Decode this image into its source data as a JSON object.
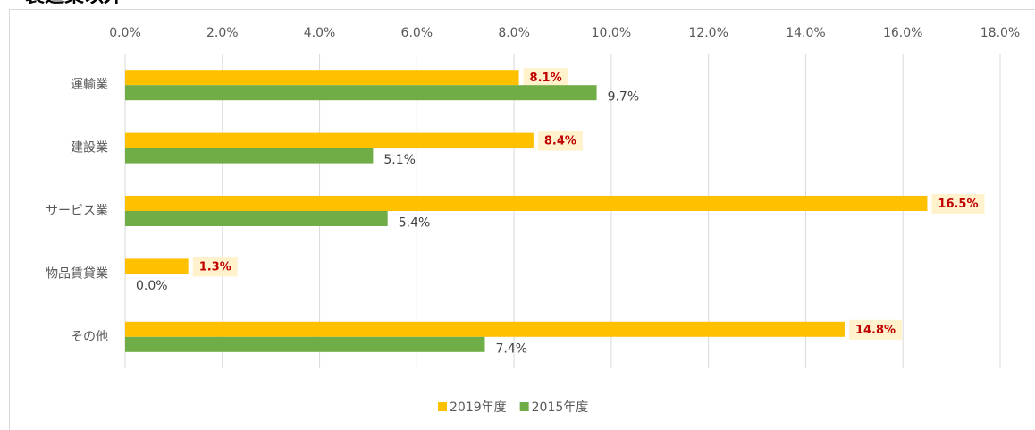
{
  "chart_data": {
    "type": "bar",
    "orientation": "horizontal",
    "title": "製造業以外",
    "categories": [
      "運輸業",
      "建設業",
      "サービス業",
      "物品賃貸業",
      "その他"
    ],
    "series": [
      {
        "name": "2019年度",
        "color": "#FFC000",
        "values": [
          8.1,
          8.4,
          16.5,
          1.3,
          14.8
        ],
        "value_labels": [
          "8.1%",
          "8.4%",
          "16.5%",
          "1.3%",
          "14.8%"
        ]
      },
      {
        "name": "2015年度",
        "color": "#70AD47",
        "values": [
          9.7,
          5.1,
          5.4,
          0.0,
          7.4
        ],
        "value_labels": [
          "9.7%",
          "5.1%",
          "5.4%",
          "0.0%",
          "7.4%"
        ]
      }
    ],
    "xlim": [
      0,
      18
    ],
    "xticks": [
      {
        "value": 0,
        "label": "0.0%"
      },
      {
        "value": 2,
        "label": "2.0%"
      },
      {
        "value": 4,
        "label": "4.0%"
      },
      {
        "value": 6,
        "label": "6.0%"
      },
      {
        "value": 8,
        "label": "8.0%"
      },
      {
        "value": 10,
        "label": "10.0%"
      },
      {
        "value": 12,
        "label": "12.0%"
      },
      {
        "value": 14,
        "label": "14.0%"
      },
      {
        "value": 16,
        "label": "16.0%"
      },
      {
        "value": 18,
        "label": "18.0%"
      }
    ],
    "grid": true,
    "legend": "bottom"
  }
}
